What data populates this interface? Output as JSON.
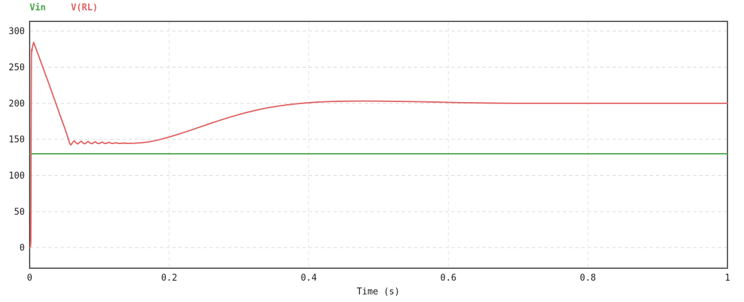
{
  "chart_data": {
    "type": "line",
    "title": "",
    "xlabel": "Time (s)",
    "ylabel": "",
    "xlim": [
      0,
      1
    ],
    "ylim": [
      -28.5,
      313.5
    ],
    "x_ticks": [
      "0",
      "0.2",
      "0.4",
      "0.6",
      "0.8",
      "1"
    ],
    "y_ticks": [
      "0",
      "50",
      "100",
      "150",
      "200",
      "250",
      "300"
    ],
    "grid": "dashed",
    "legend_position": "top-left",
    "series": [
      {
        "name": "Vin",
        "color": "#4aa44a",
        "steady_state_value": 130,
        "points": [
          [
            0,
            130
          ],
          [
            1,
            130
          ]
        ]
      },
      {
        "name": "V(RL)",
        "color": "#e06262",
        "peak_value": 284.5,
        "dip_value": 142.2,
        "steady_state_value": 200,
        "points": [
          [
            0,
            0
          ],
          [
            0.0012,
            1
          ],
          [
            0.0018,
            8
          ],
          [
            0.0022,
            150
          ],
          [
            0.0026,
            252
          ],
          [
            0.0028,
            275
          ],
          [
            0.0035,
            272
          ],
          [
            0.0038,
            277
          ],
          [
            0.005,
            282
          ],
          [
            0.0058,
            284.5
          ],
          [
            0.007,
            281
          ],
          [
            0.01,
            273.5
          ],
          [
            0.014,
            263
          ],
          [
            0.019,
            250
          ],
          [
            0.024,
            236.5
          ],
          [
            0.028,
            226
          ],
          [
            0.032,
            215
          ],
          [
            0.037,
            201.5
          ],
          [
            0.042,
            188
          ],
          [
            0.047,
            174.5
          ],
          [
            0.052,
            161
          ],
          [
            0.0555,
            150.5
          ],
          [
            0.0575,
            144.5
          ],
          [
            0.059,
            142.2
          ],
          [
            0.0615,
            145.5
          ],
          [
            0.064,
            148.0
          ],
          [
            0.0665,
            145.2
          ],
          [
            0.069,
            143.6
          ],
          [
            0.0715,
            145.8
          ],
          [
            0.074,
            147.6
          ],
          [
            0.0765,
            145.0
          ],
          [
            0.079,
            143.8
          ],
          [
            0.0815,
            145.6
          ],
          [
            0.084,
            147.2
          ],
          [
            0.0865,
            144.9
          ],
          [
            0.089,
            144.0
          ],
          [
            0.0915,
            145.4
          ],
          [
            0.094,
            146.8
          ],
          [
            0.0965,
            144.9
          ],
          [
            0.099,
            144.1
          ],
          [
            0.1015,
            145.2
          ],
          [
            0.104,
            146.3
          ],
          [
            0.1065,
            144.8
          ],
          [
            0.109,
            144.2
          ],
          [
            0.1115,
            145.1
          ],
          [
            0.114,
            145.9
          ],
          [
            0.1165,
            144.7
          ],
          [
            0.119,
            144.3
          ],
          [
            0.1215,
            145.0
          ],
          [
            0.124,
            145.5
          ],
          [
            0.1265,
            144.6
          ],
          [
            0.129,
            144.4
          ],
          [
            0.132,
            144.7
          ],
          [
            0.136,
            144.9
          ],
          [
            0.14,
            144.5
          ],
          [
            0.145,
            144.6
          ],
          [
            0.15,
            144.7
          ],
          [
            0.16,
            145.3
          ],
          [
            0.17,
            146.4
          ],
          [
            0.18,
            148.2
          ],
          [
            0.19,
            150.6
          ],
          [
            0.2,
            153.3
          ],
          [
            0.21,
            156.2
          ],
          [
            0.22,
            159.3
          ],
          [
            0.23,
            162.5
          ],
          [
            0.24,
            165.8
          ],
          [
            0.25,
            169.1
          ],
          [
            0.26,
            172.4
          ],
          [
            0.27,
            175.6
          ],
          [
            0.28,
            178.7
          ],
          [
            0.29,
            181.6
          ],
          [
            0.3,
            184.4
          ],
          [
            0.31,
            187.0
          ],
          [
            0.32,
            189.4
          ],
          [
            0.33,
            191.6
          ],
          [
            0.34,
            193.5
          ],
          [
            0.35,
            195.2
          ],
          [
            0.36,
            196.7
          ],
          [
            0.37,
            198.0
          ],
          [
            0.38,
            199.1
          ],
          [
            0.39,
            200.0
          ],
          [
            0.4,
            200.8
          ],
          [
            0.41,
            201.5
          ],
          [
            0.42,
            202.0
          ],
          [
            0.43,
            202.4
          ],
          [
            0.44,
            202.7
          ],
          [
            0.46,
            203.0
          ],
          [
            0.48,
            203.1
          ],
          [
            0.5,
            203.0
          ],
          [
            0.52,
            202.8
          ],
          [
            0.54,
            202.5
          ],
          [
            0.56,
            202.1
          ],
          [
            0.58,
            201.7
          ],
          [
            0.6,
            201.3
          ],
          [
            0.62,
            200.9
          ],
          [
            0.64,
            200.6
          ],
          [
            0.66,
            200.3
          ],
          [
            0.68,
            200.15
          ],
          [
            0.7,
            200.05
          ],
          [
            0.72,
            200.0
          ],
          [
            0.8,
            200.0
          ],
          [
            0.9,
            200.0
          ],
          [
            1.0,
            200.0
          ]
        ]
      }
    ],
    "startup_overdraw": {
      "t": 0.0012,
      "v_from": 8,
      "v_to": 49,
      "color": "#8a2f2f",
      "note": "dark overlapped trace segment of V(RL) at t close to 0"
    }
  }
}
